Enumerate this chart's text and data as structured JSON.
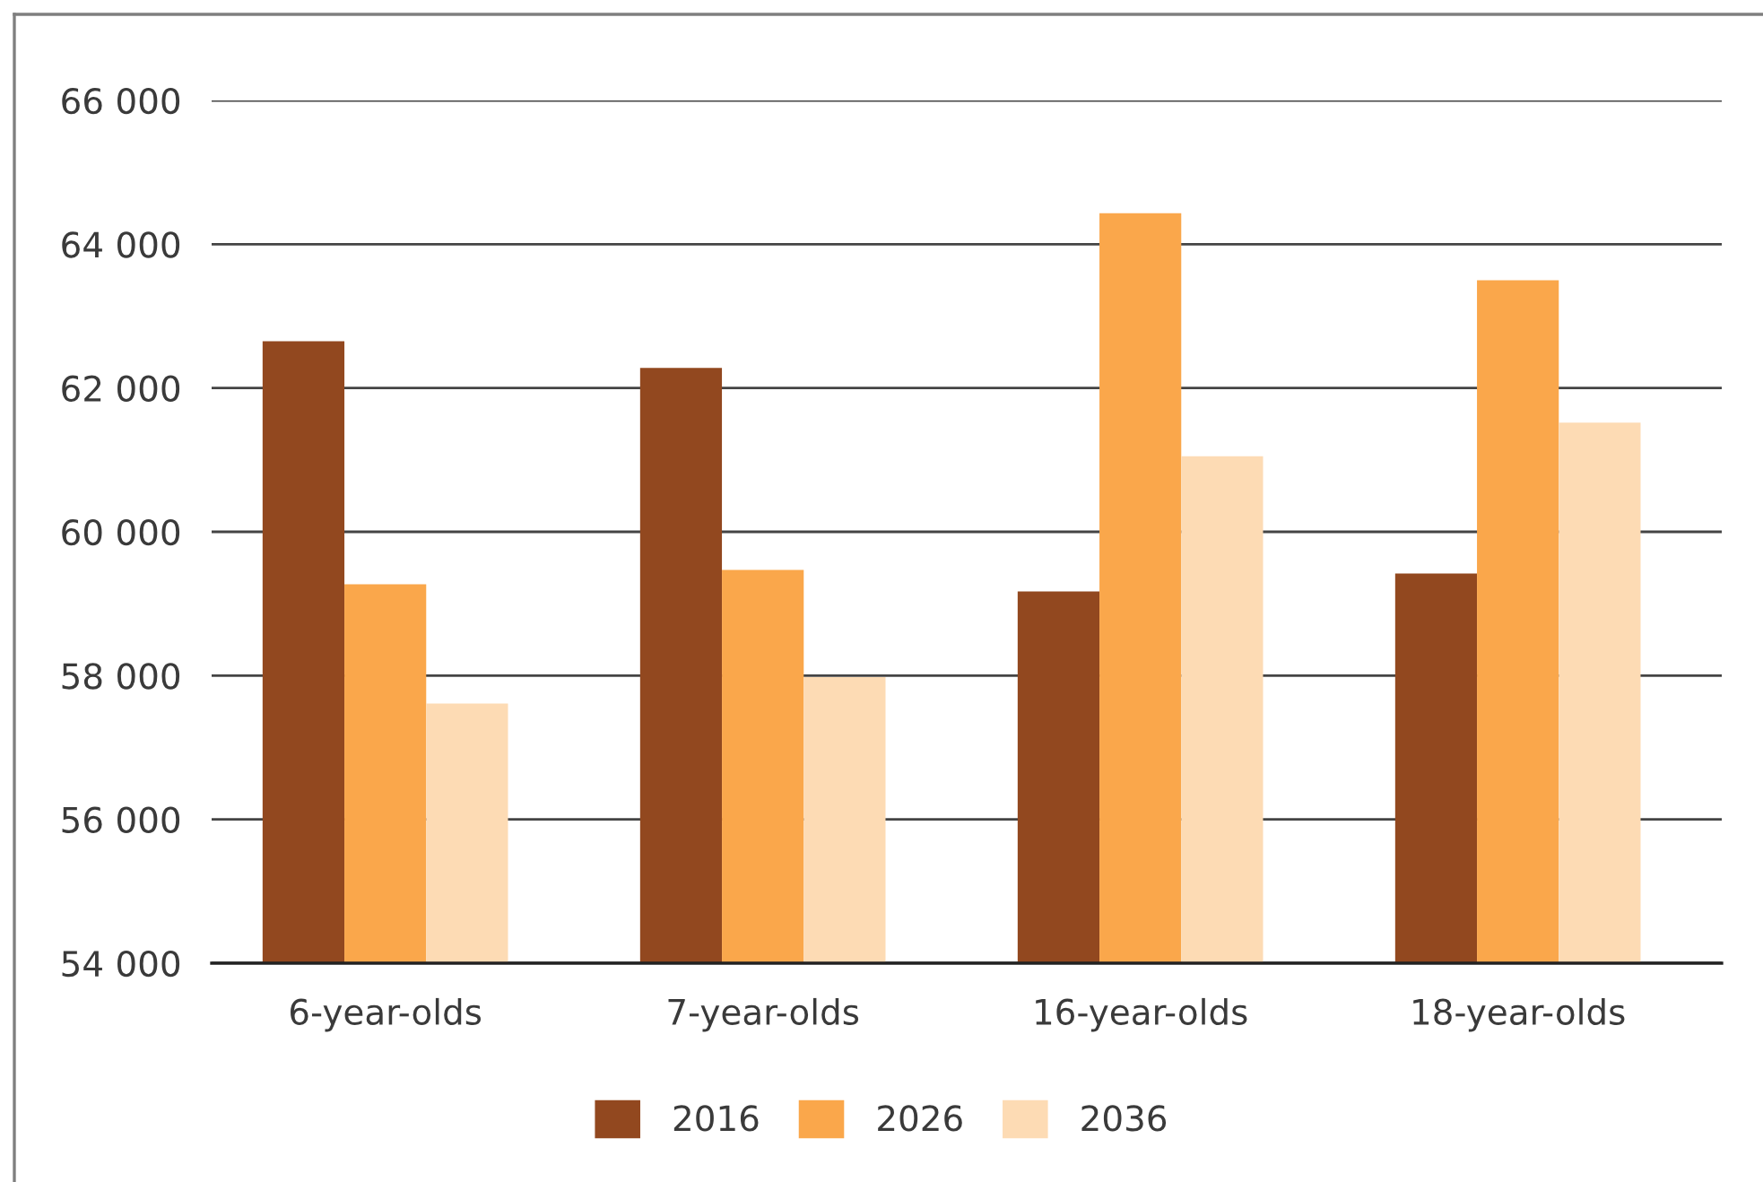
{
  "chart_data": {
    "type": "bar",
    "categories": [
      "6-year-olds",
      "7-year-olds",
      "16-year-olds",
      "18-year-olds"
    ],
    "series": [
      {
        "name": "2016",
        "color": "#92481f",
        "values": [
          62650,
          62280,
          59170,
          59420
        ]
      },
      {
        "name": "2026",
        "color": "#faa74b",
        "values": [
          59270,
          59470,
          64430,
          63500
        ]
      },
      {
        "name": "2036",
        "color": "#fddbb4",
        "values": [
          57610,
          57980,
          61050,
          61520
        ]
      }
    ],
    "ylim": [
      54000,
      66000
    ],
    "yticks": [
      {
        "value": 54000,
        "label": "54 000"
      },
      {
        "value": 56000,
        "label": "56 000"
      },
      {
        "value": 58000,
        "label": "58 000"
      },
      {
        "value": 60000,
        "label": "60 000"
      },
      {
        "value": 62000,
        "label": "62 000"
      },
      {
        "value": 64000,
        "label": "64 000"
      },
      {
        "value": 66000,
        "label": "66 000"
      }
    ],
    "grid": "y",
    "legend": "bottom"
  }
}
